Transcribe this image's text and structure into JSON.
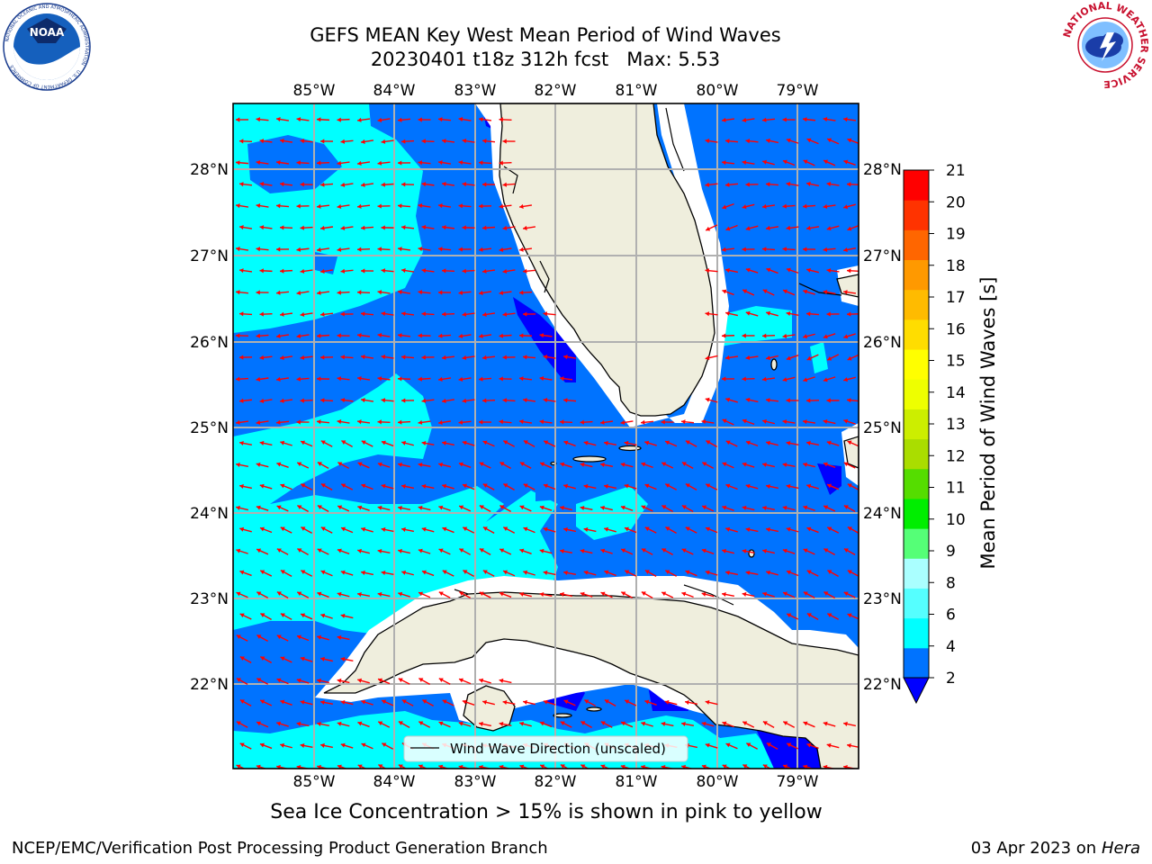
{
  "title": {
    "line1": "GEFS MEAN Key West Mean Period of Wind Waves",
    "line2": "20230401 t18z 312h fcst   Max: 5.53"
  },
  "logos": {
    "left": "NOAA",
    "left_ring_top": "NATIONAL OCEANIC AND ATMOSPHERIC ADMINISTRATION",
    "left_ring_bottom": "U.S. DEPARTMENT OF COMMERCE",
    "right_ring": "NATIONAL WEATHER SERVICE"
  },
  "map": {
    "lon_labels": [
      "85°W",
      "84°W",
      "83°W",
      "82°W",
      "81°W",
      "80°W",
      "79°W"
    ],
    "lat_labels": [
      "28°N",
      "27°N",
      "26°N",
      "25°N",
      "24°N",
      "23°N",
      "22°N"
    ],
    "legend_label": "Wind Wave Direction (unscaled)",
    "colors": {
      "band_2_4": "#0073ff",
      "band_4_6": "#00ffff",
      "below_2": "#0000ff",
      "land": "#efeedd",
      "arrow": "#ff0000",
      "grid": "#b0b0b0"
    }
  },
  "colorbar": {
    "label": "Mean Period of Wind Waves [s]",
    "ticks": [
      "2",
      "4",
      "6",
      "8",
      "9",
      "10",
      "11",
      "12",
      "13",
      "14",
      "15",
      "16",
      "17",
      "18",
      "19",
      "20",
      "21"
    ],
    "colors": [
      "#0073ff",
      "#00ffff",
      "#55ffff",
      "#aaffff",
      "#55ff77",
      "#00ee00",
      "#55dd00",
      "#aadd00",
      "#ccee00",
      "#eeff00",
      "#ffff00",
      "#ffdd00",
      "#ffbb00",
      "#ff9900",
      "#ff6600",
      "#ff3300",
      "#ff0000"
    ],
    "extend_color": "#0000ff"
  },
  "footer": {
    "note": "Sea Ice Concentration > 15% is shown in pink to yellow",
    "credit_left": "NCEP/EMC/Verification Post Processing Product Generation Branch",
    "credit_date": "03 Apr 2023 on ",
    "credit_host": "Hera"
  }
}
